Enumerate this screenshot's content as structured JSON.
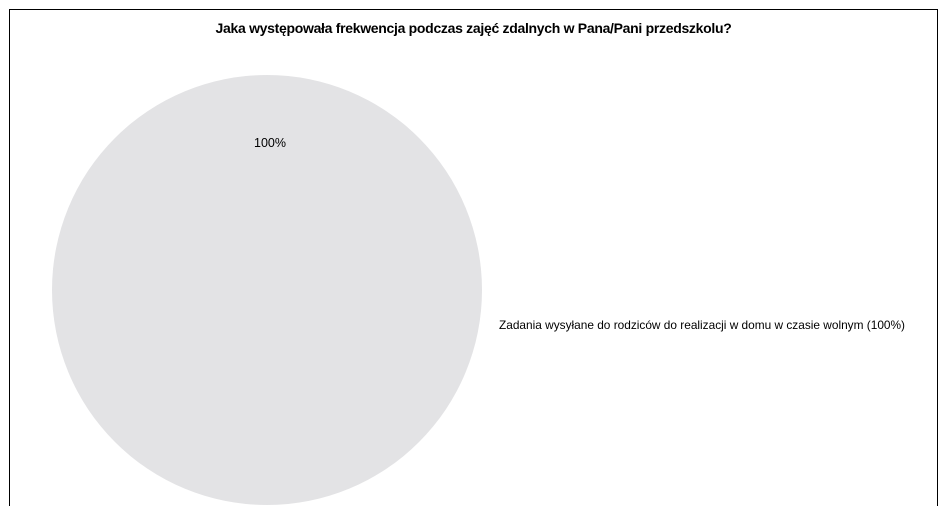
{
  "chart_data": {
    "type": "pie",
    "title": "Jaka występowała frekwencja podczas zajęć zdalnych w Pana/Pani przedszkolu?",
    "slices": [
      {
        "label": "Zadania wysyłane do rodziców do realizacji w domu w czasie wolnym (100%)",
        "value": 100,
        "data_label": "100%",
        "color": "#e3e3e5"
      }
    ],
    "legend": "right",
    "grid": false
  }
}
